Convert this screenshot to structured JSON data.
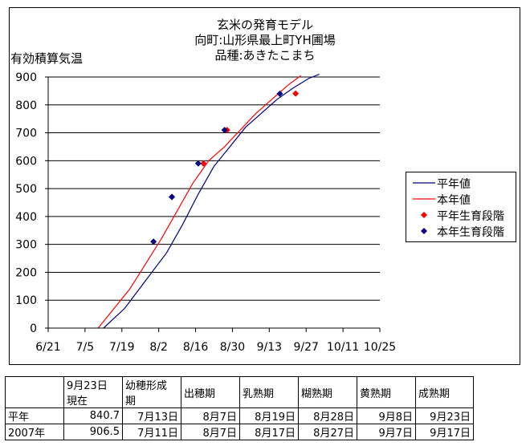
{
  "chart_data": {
    "type": "line",
    "title_lines": [
      "玄米の発育モデル",
      "向町:山形県最上町YH圃場",
      "品種:あきたこまち"
    ],
    "ylabel": "有効積算気温",
    "ylim": [
      0,
      900
    ],
    "yticks": [
      "0",
      "100",
      "200",
      "300",
      "400",
      "500",
      "600",
      "700",
      "800",
      "900"
    ],
    "xticks": [
      "6/21",
      "7/5",
      "7/19",
      "8/2",
      "8/16",
      "8/30",
      "9/13",
      "9/27",
      "10/11",
      "10/25"
    ],
    "grid": true,
    "legend_position": "right",
    "series": [
      {
        "name": "平年値",
        "color": "#000080",
        "kind": "line",
        "x": [
          "7/12",
          "7/20",
          "7/28",
          "8/5",
          "8/11",
          "8/17",
          "8/23",
          "8/29",
          "9/4",
          "9/10",
          "9/16",
          "9/22",
          "9/28",
          "10/2"
        ],
        "y": [
          0,
          70,
          170,
          270,
          370,
          480,
          580,
          650,
          720,
          770,
          820,
          860,
          895,
          910
        ]
      },
      {
        "name": "本年値",
        "color": "#ff0000",
        "kind": "line",
        "x": [
          "7/10",
          "7/16",
          "7/22",
          "7/28",
          "8/3",
          "8/9",
          "8/15",
          "8/21",
          "8/27",
          "9/2",
          "9/8",
          "9/14",
          "9/20",
          "9/25"
        ],
        "y": [
          0,
          70,
          140,
          230,
          320,
          420,
          520,
          600,
          650,
          710,
          770,
          820,
          870,
          905
        ]
      },
      {
        "name": "平年生育段階",
        "color": "#ff0000",
        "kind": "marker",
        "x": [
          "8/7",
          "8/19",
          "8/28",
          "9/23"
        ],
        "y": [
          470,
          590,
          710,
          840.7
        ]
      },
      {
        "name": "本年生育段階",
        "color": "#000080",
        "kind": "marker",
        "x": [
          "7/31",
          "8/7",
          "8/17",
          "8/27",
          "9/17"
        ],
        "y": [
          310,
          470,
          590,
          710,
          840
        ]
      }
    ]
  },
  "table": {
    "headers": [
      "",
      "9月23日\n現在",
      "幼穂形成\n期",
      "出穂期",
      "乳熟期",
      "糊熟期",
      "黄熟期",
      "成熟期"
    ],
    "rows": [
      [
        "平年",
        "840.7",
        "7月13日",
        "8月7日",
        "8月19日",
        "8月28日",
        "9月8日",
        "9月23日"
      ],
      [
        "2007年",
        "906.5",
        "7月11日",
        "8月7日",
        "8月17日",
        "8月27日",
        "9月7日",
        "9月17日"
      ]
    ]
  }
}
